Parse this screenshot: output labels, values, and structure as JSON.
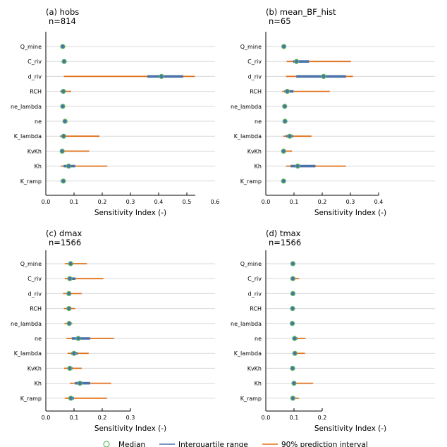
{
  "chart_data": [
    {
      "type": "interval-dot",
      "title": "(a) hobs",
      "subtitle": "n=814",
      "xlabel": "Sensitivity Index (-)",
      "ylabel": "",
      "xlim": [
        0,
        0.6
      ],
      "xticks": [
        "0.0",
        "0.1",
        "0.2",
        "0.3",
        "0.4",
        "0.5",
        "0.6"
      ],
      "axis_max": 0.53,
      "grid": "horizontal",
      "categories": [
        "Q_mine",
        "C_riv",
        "d_riv",
        "RCH",
        "ne_lambda",
        "ne",
        "K_lambda",
        "KvKh",
        "Kh",
        "K_ramp"
      ],
      "median": [
        0.06,
        0.065,
        0.41,
        0.062,
        0.06,
        0.068,
        0.063,
        0.058,
        0.081,
        0.062
      ],
      "iqr_low": [
        0.057,
        0.062,
        0.36,
        0.057,
        0.057,
        0.065,
        0.058,
        0.055,
        0.063,
        0.058
      ],
      "iqr_high": [
        0.064,
        0.069,
        0.487,
        0.068,
        0.064,
        0.071,
        0.068,
        0.063,
        0.104,
        0.066
      ],
      "pi_low": [
        0.052,
        0.058,
        0.064,
        0.05,
        0.053,
        0.063,
        0.05,
        0.05,
        0.053,
        0.052
      ],
      "pi_high": [
        0.067,
        0.072,
        0.528,
        0.09,
        0.066,
        0.074,
        0.19,
        0.154,
        0.218,
        0.07
      ]
    },
    {
      "type": "interval-dot",
      "title": "(b) mean_BF_hist",
      "subtitle": "n=65",
      "xlabel": "Sensitivity Index (-)",
      "ylabel": "",
      "xlim": [
        0,
        0.6
      ],
      "xticks": [
        "0.0",
        "0.1",
        "0.2",
        "0.3",
        "0.4"
      ],
      "axis_max": 0.4,
      "grid": "horizontal",
      "categories": [
        "Q_mine",
        "C_riv",
        "d_riv",
        "RCH",
        "ne_lambda",
        "ne",
        "K_lambda",
        "KvKh",
        "Kh",
        "K_ramp"
      ],
      "median": [
        0.064,
        0.109,
        0.205,
        0.076,
        0.067,
        0.068,
        0.085,
        0.063,
        0.113,
        0.063
      ],
      "iqr_low": [
        0.061,
        0.097,
        0.108,
        0.066,
        0.064,
        0.064,
        0.072,
        0.06,
        0.088,
        0.06
      ],
      "iqr_high": [
        0.067,
        0.153,
        0.284,
        0.098,
        0.07,
        0.072,
        0.097,
        0.066,
        0.176,
        0.066
      ],
      "pi_low": [
        0.058,
        0.074,
        0.072,
        0.058,
        0.059,
        0.06,
        0.062,
        0.06,
        0.072,
        0.058
      ],
      "pi_high": [
        0.069,
        0.302,
        0.309,
        0.227,
        0.072,
        0.076,
        0.162,
        0.093,
        0.284,
        0.067
      ]
    },
    {
      "type": "interval-dot",
      "title": "(c) dmax",
      "subtitle": "n=1566",
      "xlabel": "Sensitivity Index (-)",
      "ylabel": "",
      "xlim": [
        0,
        0.6
      ],
      "xticks": [
        "0.0",
        "0.1",
        "0.2",
        "0.3"
      ],
      "axis_max": 0.3,
      "grid": "horizontal",
      "categories": [
        "Q_mine",
        "C_riv",
        "d_riv",
        "RCH",
        "ne_lambda",
        "ne",
        "K_lambda",
        "KvKh",
        "Kh",
        "K_ramp"
      ],
      "median": [
        0.088,
        0.085,
        0.082,
        0.082,
        0.083,
        0.115,
        0.1,
        0.085,
        0.121,
        0.089
      ],
      "iqr_low": [
        0.08,
        0.078,
        0.076,
        0.077,
        0.078,
        0.092,
        0.09,
        0.078,
        0.103,
        0.08
      ],
      "iqr_high": [
        0.095,
        0.105,
        0.09,
        0.088,
        0.088,
        0.157,
        0.113,
        0.095,
        0.157,
        0.1
      ],
      "pi_low": [
        0.067,
        0.067,
        0.061,
        0.064,
        0.066,
        0.073,
        0.077,
        0.065,
        0.085,
        0.067
      ],
      "pi_high": [
        0.146,
        0.204,
        0.127,
        0.104,
        0.094,
        0.242,
        0.152,
        0.127,
        0.232,
        0.217
      ]
    },
    {
      "type": "interval-dot",
      "title": "(d) tmax",
      "subtitle": "n=1566",
      "xlabel": "Sensitivity Index (-)",
      "ylabel": "",
      "xlim": [
        0,
        0.6
      ],
      "xticks": [
        "0.0",
        "0.1",
        "0.2"
      ],
      "axis_max": 0.2,
      "grid": "horizontal",
      "categories": [
        "Q_mine",
        "C_riv",
        "d_riv",
        "RCH",
        "ne_lambda",
        "ne",
        "K_lambda",
        "KvKh",
        "Kh",
        "K_ramp"
      ],
      "median": [
        0.096,
        0.096,
        0.096,
        0.095,
        0.094,
        0.102,
        0.103,
        0.095,
        0.1,
        0.096
      ],
      "iqr_low": [
        0.094,
        0.094,
        0.094,
        0.093,
        0.092,
        0.098,
        0.098,
        0.093,
        0.097,
        0.094
      ],
      "iqr_high": [
        0.098,
        0.099,
        0.098,
        0.097,
        0.096,
        0.112,
        0.107,
        0.097,
        0.104,
        0.098
      ],
      "pi_low": [
        0.089,
        0.088,
        0.09,
        0.088,
        0.085,
        0.097,
        0.097,
        0.088,
        0.098,
        0.088
      ],
      "pi_high": [
        0.1,
        0.118,
        0.1,
        0.1,
        0.1,
        0.141,
        0.139,
        0.1,
        0.168,
        0.118
      ]
    }
  ],
  "legend": {
    "position": "bottom-center",
    "items": [
      {
        "label": "Median",
        "kind": "circle",
        "color": "#5cb85c"
      },
      {
        "label": "Interquartile range",
        "kind": "line",
        "color": "#4a72a8"
      },
      {
        "label": "90% prediction interval",
        "kind": "line",
        "color": "#e0701a"
      }
    ]
  },
  "colors": {
    "grid": "#d9d9d9",
    "pi": "#e0701a",
    "iqr": "#4a72a8",
    "median_edge": "#5cb85c",
    "median_fill": "#4a72a8"
  }
}
